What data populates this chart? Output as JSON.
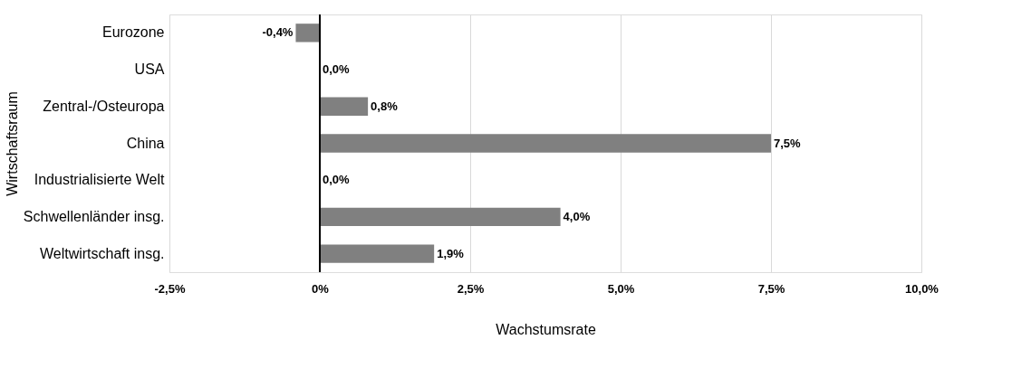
{
  "chart_data": {
    "type": "bar",
    "orientation": "horizontal",
    "xlabel": "Wachstumsrate",
    "ylabel": "Wirtschaftsraum",
    "categories": [
      "Eurozone",
      "USA",
      "Zentral-/Osteuropa",
      "China",
      "Industrialisierte Welt",
      "Schwellenländer insg.",
      "Weltwirtschaft insg."
    ],
    "values": [
      -0.4,
      0.0,
      0.8,
      7.5,
      0.0,
      4.0,
      1.9
    ],
    "value_labels": [
      "-0,4%",
      "0,0%",
      "0,8%",
      "7,5%",
      "0,0%",
      "4,0%",
      "1,9%"
    ],
    "color": "#808080",
    "xlim": [
      -2.5,
      10
    ],
    "xticks": [
      {
        "value": -2.5,
        "label": "-2,5%"
      },
      {
        "value": 0,
        "label": "0%"
      },
      {
        "value": 2.5,
        "label": "2,5%"
      },
      {
        "value": 5,
        "label": "5,0%"
      },
      {
        "value": 7.5,
        "label": "7,5%"
      },
      {
        "value": 10,
        "label": "10,0%"
      }
    ],
    "grid": "x"
  }
}
